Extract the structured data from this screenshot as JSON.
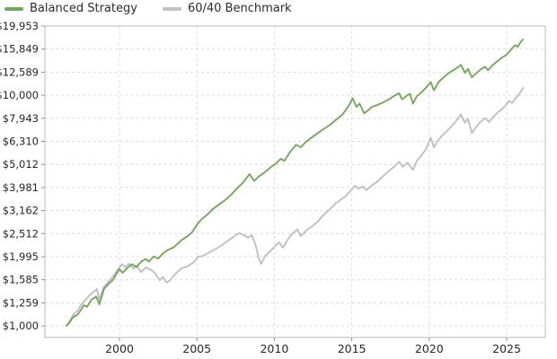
{
  "chart_data": {
    "type": "line",
    "title": "",
    "xlabel": "",
    "ylabel": "",
    "x_axis": {
      "ticks": [
        2000,
        2005,
        2010,
        2015,
        2020,
        2025
      ],
      "range": [
        1995.2,
        2027.7
      ]
    },
    "y_axis": {
      "scale": "log",
      "ticks": [
        {
          "value": 19953,
          "label": "$19,953"
        },
        {
          "value": 15849,
          "label": "$15,849"
        },
        {
          "value": 12589,
          "label": "$12,589"
        },
        {
          "value": 10000,
          "label": "$10,000"
        },
        {
          "value": 7943,
          "label": "$7,943"
        },
        {
          "value": 6310,
          "label": "$6,310"
        },
        {
          "value": 5012,
          "label": "$5,012"
        },
        {
          "value": 3981,
          "label": "$3,981"
        },
        {
          "value": 3162,
          "label": "$3,162"
        },
        {
          "value": 2512,
          "label": "$2,512"
        },
        {
          "value": 1995,
          "label": "$1,995"
        },
        {
          "value": 1585,
          "label": "$1,585"
        },
        {
          "value": 1259,
          "label": "$1,259"
        },
        {
          "value": 1000,
          "label": "$1,000"
        }
      ],
      "range": [
        1000,
        19953
      ]
    },
    "grid": true,
    "legend_position": "top-left",
    "colors": {
      "grid": "#dcdcdc",
      "border": "#b9b9b9",
      "tick_text": "#262626",
      "tick_mark": "#8c8c8c"
    },
    "series": [
      {
        "name": "Balanced Strategy",
        "color": "#73a85f",
        "points": [
          [
            1996.58,
            1000
          ],
          [
            1996.8,
            1040
          ],
          [
            1997.0,
            1090
          ],
          [
            1997.3,
            1120
          ],
          [
            1997.5,
            1170
          ],
          [
            1997.7,
            1230
          ],
          [
            1997.9,
            1210
          ],
          [
            1998.2,
            1300
          ],
          [
            1998.5,
            1340
          ],
          [
            1998.7,
            1240
          ],
          [
            1999.0,
            1450
          ],
          [
            1999.3,
            1520
          ],
          [
            1999.6,
            1590
          ],
          [
            1999.8,
            1680
          ],
          [
            2000.0,
            1760
          ],
          [
            2000.2,
            1700
          ],
          [
            2000.5,
            1780
          ],
          [
            2000.8,
            1850
          ],
          [
            2001.1,
            1800
          ],
          [
            2001.4,
            1900
          ],
          [
            2001.7,
            1950
          ],
          [
            2001.9,
            1900
          ],
          [
            2002.2,
            2000
          ],
          [
            2002.5,
            1960
          ],
          [
            2002.8,
            2060
          ],
          [
            2003.1,
            2130
          ],
          [
            2003.5,
            2190
          ],
          [
            2004.0,
            2350
          ],
          [
            2004.4,
            2450
          ],
          [
            2004.7,
            2550
          ],
          [
            2005.0,
            2750
          ],
          [
            2005.3,
            2900
          ],
          [
            2005.7,
            3050
          ],
          [
            2006.0,
            3200
          ],
          [
            2006.4,
            3350
          ],
          [
            2006.8,
            3500
          ],
          [
            2007.2,
            3700
          ],
          [
            2007.6,
            3950
          ],
          [
            2008.0,
            4200
          ],
          [
            2008.4,
            4550
          ],
          [
            2008.7,
            4250
          ],
          [
            2009.0,
            4450
          ],
          [
            2009.4,
            4650
          ],
          [
            2009.8,
            4900
          ],
          [
            2010.1,
            5050
          ],
          [
            2010.4,
            5300
          ],
          [
            2010.65,
            5200
          ],
          [
            2011.0,
            5650
          ],
          [
            2011.4,
            6100
          ],
          [
            2011.7,
            5950
          ],
          [
            2012.0,
            6250
          ],
          [
            2012.4,
            6550
          ],
          [
            2012.8,
            6850
          ],
          [
            2013.2,
            7150
          ],
          [
            2013.6,
            7450
          ],
          [
            2014.0,
            7850
          ],
          [
            2014.4,
            8250
          ],
          [
            2014.85,
            9100
          ],
          [
            2015.05,
            9700
          ],
          [
            2015.3,
            8900
          ],
          [
            2015.5,
            9200
          ],
          [
            2015.8,
            8350
          ],
          [
            2016.05,
            8600
          ],
          [
            2016.3,
            8900
          ],
          [
            2016.7,
            9100
          ],
          [
            2017.0,
            9300
          ],
          [
            2017.4,
            9600
          ],
          [
            2017.8,
            10000
          ],
          [
            2018.05,
            10200
          ],
          [
            2018.25,
            9600
          ],
          [
            2018.5,
            9900
          ],
          [
            2018.75,
            10150
          ],
          [
            2018.95,
            9200
          ],
          [
            2019.2,
            9900
          ],
          [
            2019.5,
            10300
          ],
          [
            2019.8,
            10800
          ],
          [
            2020.1,
            11400
          ],
          [
            2020.3,
            10500
          ],
          [
            2020.6,
            11400
          ],
          [
            2020.9,
            11900
          ],
          [
            2021.2,
            12400
          ],
          [
            2021.6,
            12900
          ],
          [
            2021.9,
            13300
          ],
          [
            2022.05,
            13550
          ],
          [
            2022.3,
            12500
          ],
          [
            2022.5,
            13000
          ],
          [
            2022.75,
            11950
          ],
          [
            2023.0,
            12400
          ],
          [
            2023.3,
            12900
          ],
          [
            2023.6,
            13300
          ],
          [
            2023.8,
            12850
          ],
          [
            2024.05,
            13400
          ],
          [
            2024.35,
            13950
          ],
          [
            2024.65,
            14500
          ],
          [
            2024.95,
            14900
          ],
          [
            2025.15,
            15400
          ],
          [
            2025.4,
            16100
          ],
          [
            2025.55,
            16500
          ],
          [
            2025.7,
            16200
          ],
          [
            2025.9,
            17000
          ],
          [
            2026.05,
            17450
          ]
        ]
      },
      {
        "name": "60/40 Benchmark",
        "color": "#c0c0c0",
        "points": [
          [
            1996.58,
            1000
          ],
          [
            1996.8,
            1055
          ],
          [
            1997.0,
            1115
          ],
          [
            1997.3,
            1165
          ],
          [
            1997.6,
            1255
          ],
          [
            1997.8,
            1295
          ],
          [
            1998.0,
            1340
          ],
          [
            1998.3,
            1400
          ],
          [
            1998.55,
            1445
          ],
          [
            1998.7,
            1300
          ],
          [
            1999.0,
            1475
          ],
          [
            1999.3,
            1560
          ],
          [
            1999.6,
            1645
          ],
          [
            1999.9,
            1760
          ],
          [
            2000.15,
            1850
          ],
          [
            2000.4,
            1800
          ],
          [
            2000.6,
            1860
          ],
          [
            2000.9,
            1770
          ],
          [
            2001.1,
            1830
          ],
          [
            2001.4,
            1710
          ],
          [
            2001.7,
            1790
          ],
          [
            2002.0,
            1755
          ],
          [
            2002.3,
            1690
          ],
          [
            2002.6,
            1575
          ],
          [
            2002.8,
            1630
          ],
          [
            2003.05,
            1540
          ],
          [
            2003.3,
            1585
          ],
          [
            2003.6,
            1680
          ],
          [
            2004.0,
            1775
          ],
          [
            2004.4,
            1815
          ],
          [
            2004.8,
            1885
          ],
          [
            2005.05,
            1990
          ],
          [
            2005.4,
            2010
          ],
          [
            2005.8,
            2085
          ],
          [
            2006.2,
            2155
          ],
          [
            2006.6,
            2235
          ],
          [
            2007.0,
            2340
          ],
          [
            2007.4,
            2445
          ],
          [
            2007.75,
            2525
          ],
          [
            2008.0,
            2480
          ],
          [
            2008.3,
            2415
          ],
          [
            2008.55,
            2470
          ],
          [
            2008.8,
            2230
          ],
          [
            2009.0,
            1950
          ],
          [
            2009.15,
            1855
          ],
          [
            2009.4,
            2010
          ],
          [
            2009.7,
            2095
          ],
          [
            2010.0,
            2200
          ],
          [
            2010.3,
            2300
          ],
          [
            2010.55,
            2185
          ],
          [
            2010.8,
            2330
          ],
          [
            2011.1,
            2490
          ],
          [
            2011.5,
            2620
          ],
          [
            2011.7,
            2450
          ],
          [
            2011.9,
            2530
          ],
          [
            2012.2,
            2640
          ],
          [
            2012.5,
            2720
          ],
          [
            2012.8,
            2830
          ],
          [
            2013.1,
            2990
          ],
          [
            2013.4,
            3120
          ],
          [
            2013.7,
            3260
          ],
          [
            2014.0,
            3420
          ],
          [
            2014.3,
            3530
          ],
          [
            2014.6,
            3650
          ],
          [
            2014.9,
            3840
          ],
          [
            2015.2,
            4050
          ],
          [
            2015.45,
            3930
          ],
          [
            2015.7,
            4020
          ],
          [
            2015.95,
            3880
          ],
          [
            2016.2,
            4020
          ],
          [
            2016.6,
            4200
          ],
          [
            2017.0,
            4450
          ],
          [
            2017.4,
            4700
          ],
          [
            2017.8,
            4950
          ],
          [
            2018.05,
            5150
          ],
          [
            2018.3,
            4900
          ],
          [
            2018.6,
            5100
          ],
          [
            2018.95,
            4750
          ],
          [
            2019.2,
            5200
          ],
          [
            2019.5,
            5500
          ],
          [
            2019.8,
            5850
          ],
          [
            2020.1,
            6550
          ],
          [
            2020.3,
            5950
          ],
          [
            2020.55,
            6350
          ],
          [
            2020.85,
            6700
          ],
          [
            2021.15,
            7000
          ],
          [
            2021.45,
            7350
          ],
          [
            2021.75,
            7750
          ],
          [
            2022.05,
            8250
          ],
          [
            2022.3,
            7600
          ],
          [
            2022.5,
            7900
          ],
          [
            2022.75,
            6850
          ],
          [
            2023.0,
            7250
          ],
          [
            2023.3,
            7650
          ],
          [
            2023.6,
            7950
          ],
          [
            2023.85,
            7650
          ],
          [
            2024.1,
            8000
          ],
          [
            2024.4,
            8400
          ],
          [
            2024.7,
            8700
          ],
          [
            2024.95,
            9050
          ],
          [
            2025.15,
            9450
          ],
          [
            2025.35,
            9250
          ],
          [
            2025.55,
            9650
          ],
          [
            2025.8,
            10100
          ],
          [
            2026.05,
            10750
          ]
        ]
      }
    ]
  },
  "legend": {
    "items": [
      {
        "label": "Balanced Strategy"
      },
      {
        "label": "60/40 Benchmark"
      }
    ]
  }
}
